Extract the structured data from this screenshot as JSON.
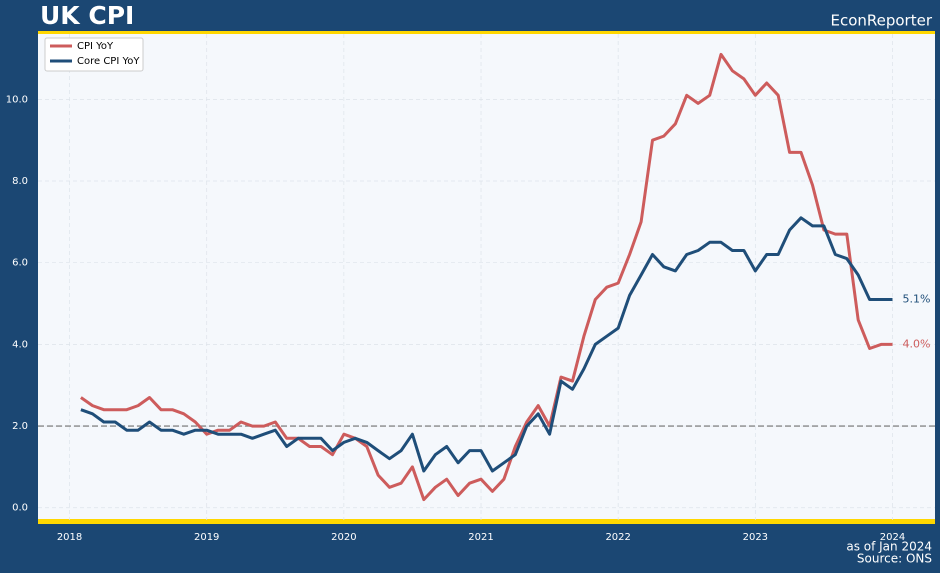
{
  "chart_data": {
    "type": "line",
    "title": "UK CPI",
    "watermark": "EconReporter",
    "footnotes": [
      "as of Jan 2024",
      "Source: ONS"
    ],
    "x": [
      2018.083,
      2018.167,
      2018.25,
      2018.333,
      2018.417,
      2018.5,
      2018.583,
      2018.667,
      2018.75,
      2018.833,
      2018.917,
      2019.0,
      2019.083,
      2019.167,
      2019.25,
      2019.333,
      2019.417,
      2019.5,
      2019.583,
      2019.667,
      2019.75,
      2019.833,
      2019.917,
      2020.0,
      2020.083,
      2020.167,
      2020.25,
      2020.333,
      2020.417,
      2020.5,
      2020.583,
      2020.667,
      2020.75,
      2020.833,
      2020.917,
      2021.0,
      2021.083,
      2021.167,
      2021.25,
      2021.333,
      2021.417,
      2021.5,
      2021.583,
      2021.667,
      2021.75,
      2021.833,
      2021.917,
      2022.0,
      2022.083,
      2022.167,
      2022.25,
      2022.333,
      2022.417,
      2022.5,
      2022.583,
      2022.667,
      2022.75,
      2022.833,
      2022.917,
      2023.0,
      2023.083,
      2023.167,
      2023.25,
      2023.333,
      2023.417,
      2023.5,
      2023.583,
      2023.667,
      2023.75,
      2023.833,
      2023.917,
      2024.0
    ],
    "series": [
      {
        "name": "CPI YoY",
        "color": "#cd5c5c",
        "values": [
          2.7,
          2.5,
          2.4,
          2.4,
          2.4,
          2.5,
          2.7,
          2.4,
          2.4,
          2.3,
          2.1,
          1.8,
          1.9,
          1.9,
          2.1,
          2.0,
          2.0,
          2.1,
          1.7,
          1.7,
          1.5,
          1.5,
          1.3,
          1.8,
          1.7,
          1.5,
          0.8,
          0.5,
          0.6,
          1.0,
          0.2,
          0.5,
          0.7,
          0.3,
          0.6,
          0.7,
          0.4,
          0.7,
          1.5,
          2.1,
          2.5,
          2.0,
          3.2,
          3.1,
          4.2,
          5.1,
          5.4,
          5.5,
          6.2,
          7.0,
          9.0,
          9.1,
          9.4,
          10.1,
          9.9,
          10.1,
          11.1,
          10.7,
          10.5,
          10.1,
          10.4,
          10.1,
          8.7,
          8.7,
          7.9,
          6.8,
          6.7,
          6.7,
          4.6,
          3.9,
          4.0,
          4.0
        ],
        "value_labels": [
          null,
          null,
          null,
          null,
          null,
          null,
          null,
          null,
          null,
          null,
          null,
          null,
          null,
          null,
          null,
          null,
          null,
          null,
          null,
          null,
          null,
          null,
          null,
          null,
          null,
          null,
          null,
          null,
          null,
          null,
          null,
          null,
          null,
          null,
          null,
          null,
          null,
          null,
          null,
          null,
          null,
          null,
          null,
          null,
          null,
          null,
          null,
          null,
          null,
          null,
          null,
          null,
          null,
          null,
          null,
          null,
          null,
          null,
          null,
          null,
          null,
          null,
          null,
          null,
          null,
          null,
          null,
          null,
          null,
          null,
          null,
          "4.0%"
        ]
      },
      {
        "name": "Core CPI YoY",
        "color": "#1f4e79",
        "values": [
          2.4,
          2.3,
          2.1,
          2.1,
          1.9,
          1.9,
          2.1,
          1.9,
          1.9,
          1.8,
          1.9,
          1.9,
          1.8,
          1.8,
          1.8,
          1.7,
          1.8,
          1.9,
          1.5,
          1.7,
          1.7,
          1.7,
          1.4,
          1.6,
          1.7,
          1.6,
          1.4,
          1.2,
          1.4,
          1.8,
          0.9,
          1.3,
          1.5,
          1.1,
          1.4,
          1.4,
          0.9,
          1.1,
          1.3,
          2.0,
          2.3,
          1.8,
          3.1,
          2.9,
          3.4,
          4.0,
          4.2,
          4.4,
          5.2,
          5.7,
          6.2,
          5.9,
          5.8,
          6.2,
          6.3,
          6.5,
          6.5,
          6.3,
          6.3,
          5.8,
          6.2,
          6.2,
          6.8,
          7.1,
          6.9,
          6.9,
          6.2,
          6.1,
          5.7,
          5.1,
          5.1,
          5.1
        ],
        "value_labels": [
          null,
          null,
          null,
          null,
          null,
          null,
          null,
          null,
          null,
          null,
          null,
          null,
          null,
          null,
          null,
          null,
          null,
          null,
          null,
          null,
          null,
          null,
          null,
          null,
          null,
          null,
          null,
          null,
          null,
          null,
          null,
          null,
          null,
          null,
          null,
          null,
          null,
          null,
          null,
          null,
          null,
          null,
          null,
          null,
          null,
          null,
          null,
          null,
          null,
          null,
          null,
          null,
          null,
          null,
          null,
          null,
          null,
          null,
          null,
          null,
          null,
          null,
          null,
          null,
          null,
          null,
          null,
          null,
          null,
          null,
          null,
          "5.1%"
        ]
      }
    ],
    "hline": 2.0,
    "xlim": [
      2017.77,
      2024.31
    ],
    "xticks": [
      2018,
      2019,
      2020,
      2021,
      2022,
      2023,
      2024
    ],
    "ylim": [
      -0.3,
      11.6
    ],
    "yticks": [
      {
        "value": 0,
        "label": "0.0"
      },
      {
        "value": 2,
        "label": "2.0"
      },
      {
        "value": 4,
        "label": "4.0"
      },
      {
        "value": 6,
        "label": "6.0"
      },
      {
        "value": 8,
        "label": "8.0"
      },
      {
        "value": 10,
        "label": "10.0"
      }
    ],
    "grid": true,
    "legend": "upper left"
  }
}
